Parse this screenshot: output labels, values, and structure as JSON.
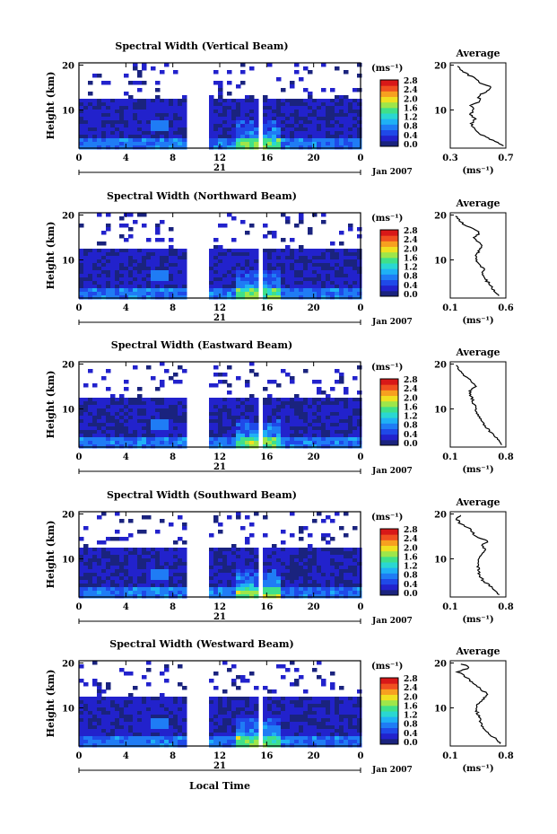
{
  "figure": {
    "xlabel_bottom": "Local Time",
    "colorbar_unit": "(ms⁻¹)",
    "colorbar_ticks": [
      "0.0",
      "0.4",
      "0.8",
      "1.2",
      "1.6",
      "2.0",
      "2.4",
      "2.8"
    ],
    "colorbar_colors": [
      "#1a237e",
      "#2222cc",
      "#1f49e8",
      "#1f7cf5",
      "#1fb1f5",
      "#2ad7d2",
      "#3fe08a",
      "#9ee64a",
      "#f0e020",
      "#f7a020",
      "#f05020",
      "#d81818"
    ],
    "date_label": "Jan 2007",
    "day_label": "21",
    "avg_title": "Average",
    "avg_xlabel": "(ms⁻¹)"
  },
  "chart_data": [
    {
      "type": "heatmap",
      "title": "Spectral Width (Vertical Beam)",
      "ylabel": "Height (km)",
      "xticks": [
        "0",
        "4",
        "8",
        "12",
        "16",
        "20",
        "0"
      ],
      "yticks": [
        "20",
        "10"
      ],
      "xlim": [
        0,
        24
      ],
      "ylim": [
        1.5,
        20.5
      ],
      "data_gaps_hours": [
        [
          9.0,
          10.8
        ],
        [
          15.2,
          15.6
        ]
      ],
      "profile": {
        "title": "Average",
        "xlim": [
          0.3,
          0.7
        ],
        "xticks": [
          "0.3",
          "0.7"
        ],
        "yticks": [
          "20",
          "10"
        ],
        "height_km": [
          2,
          3,
          4,
          5,
          6,
          7,
          8,
          9,
          10,
          11,
          12,
          13,
          14,
          15,
          16,
          17,
          18,
          19,
          20
        ],
        "width_ms": [
          0.68,
          0.62,
          0.55,
          0.5,
          0.47,
          0.45,
          0.48,
          0.44,
          0.47,
          0.45,
          0.52,
          0.5,
          0.55,
          0.6,
          0.52,
          0.48,
          0.42,
          0.38,
          0.34
        ]
      }
    },
    {
      "type": "heatmap",
      "title": "Spectral Width (Northward Beam)",
      "ylabel": "Height (km)",
      "xticks": [
        "0",
        "4",
        "8",
        "12",
        "16",
        "20",
        "0"
      ],
      "yticks": [
        "20",
        "10"
      ],
      "xlim": [
        0,
        24
      ],
      "ylim": [
        1.5,
        20.5
      ],
      "data_gaps_hours": [
        [
          9.0,
          10.8
        ],
        [
          15.2,
          15.6
        ]
      ],
      "profile": {
        "title": "Average",
        "xlim": [
          0.1,
          0.6
        ],
        "xticks": [
          "0.1",
          "0.6"
        ],
        "yticks": [
          "20",
          "10"
        ],
        "height_km": [
          2,
          3,
          4,
          5,
          6,
          7,
          8,
          9,
          10,
          11,
          12,
          13,
          14,
          15,
          16,
          17,
          18,
          19,
          20
        ],
        "width_ms": [
          0.55,
          0.5,
          0.47,
          0.44,
          0.4,
          0.38,
          0.4,
          0.36,
          0.34,
          0.33,
          0.36,
          0.38,
          0.35,
          0.32,
          0.36,
          0.3,
          0.22,
          0.18,
          0.14
        ]
      }
    },
    {
      "type": "heatmap",
      "title": "Spectral Width (Eastward Beam)",
      "ylabel": "Height (km)",
      "xticks": [
        "0",
        "4",
        "8",
        "12",
        "16",
        "20",
        "0"
      ],
      "yticks": [
        "20",
        "10"
      ],
      "xlim": [
        0,
        24
      ],
      "ylim": [
        1.5,
        20.5
      ],
      "data_gaps_hours": [
        [
          9.0,
          10.8
        ],
        [
          15.2,
          15.6
        ]
      ],
      "profile": {
        "title": "Average",
        "xlim": [
          0.1,
          0.8
        ],
        "xticks": [
          "0.1",
          "0.8"
        ],
        "yticks": [
          "20",
          "10"
        ],
        "height_km": [
          2,
          3,
          4,
          5,
          6,
          7,
          8,
          9,
          10,
          11,
          12,
          13,
          14,
          15,
          16,
          17,
          18,
          19,
          20
        ],
        "width_ms": [
          0.75,
          0.7,
          0.66,
          0.6,
          0.55,
          0.5,
          0.48,
          0.44,
          0.42,
          0.4,
          0.38,
          0.36,
          0.34,
          0.42,
          0.38,
          0.3,
          0.24,
          0.2,
          0.16
        ]
      }
    },
    {
      "type": "heatmap",
      "title": "Spectral Width (Southward Beam)",
      "ylabel": "Height (km)",
      "xticks": [
        "0",
        "4",
        "8",
        "12",
        "16",
        "20",
        "0"
      ],
      "yticks": [
        "20",
        "10"
      ],
      "xlim": [
        0,
        24
      ],
      "ylim": [
        1.5,
        20.5
      ],
      "data_gaps_hours": [
        [
          9.0,
          10.8
        ],
        [
          15.2,
          15.6
        ]
      ],
      "profile": {
        "title": "Average",
        "xlim": [
          0.1,
          0.8
        ],
        "xticks": [
          "0.1",
          "0.8"
        ],
        "yticks": [
          "20",
          "10"
        ],
        "height_km": [
          2,
          3,
          4,
          5,
          6,
          7,
          8,
          9,
          10,
          11,
          12,
          13,
          14,
          15,
          16,
          17,
          18,
          19,
          20
        ],
        "width_ms": [
          0.72,
          0.66,
          0.6,
          0.52,
          0.48,
          0.46,
          0.45,
          0.44,
          0.46,
          0.5,
          0.55,
          0.5,
          0.58,
          0.42,
          0.38,
          0.32,
          0.22,
          0.18,
          0.24
        ]
      }
    },
    {
      "type": "heatmap",
      "title": "Spectral Width (Westward Beam)",
      "ylabel": "Height (km)",
      "xticks": [
        "0",
        "4",
        "8",
        "12",
        "16",
        "20",
        "0"
      ],
      "yticks": [
        "20",
        "10"
      ],
      "xlim": [
        0,
        24
      ],
      "ylim": [
        1.5,
        20.5
      ],
      "data_gaps_hours": [
        [
          9.0,
          10.8
        ],
        [
          15.2,
          15.6
        ]
      ],
      "profile": {
        "title": "Average",
        "xlim": [
          0.1,
          0.8
        ],
        "xticks": [
          "0.1",
          "0.8"
        ],
        "yticks": [
          "20",
          "10"
        ],
        "height_km": [
          2,
          3,
          4,
          5,
          6,
          7,
          8,
          9,
          10,
          11,
          12,
          13,
          14,
          15,
          16,
          17,
          18,
          19,
          20
        ],
        "width_ms": [
          0.74,
          0.68,
          0.6,
          0.54,
          0.5,
          0.48,
          0.46,
          0.44,
          0.42,
          0.45,
          0.52,
          0.58,
          0.5,
          0.42,
          0.36,
          0.28,
          0.2,
          0.34,
          0.22
        ]
      }
    }
  ]
}
